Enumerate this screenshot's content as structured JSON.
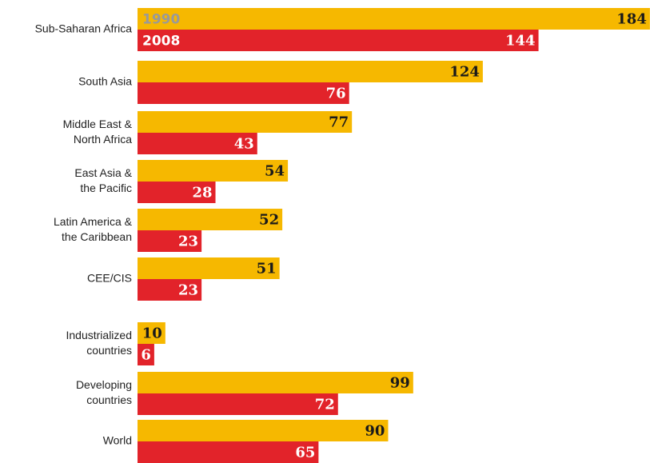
{
  "chart_data": {
    "type": "bar",
    "orientation": "horizontal",
    "categories": [
      [
        "Sub-Saharan Africa"
      ],
      [
        "South Asia"
      ],
      [
        "Middle East &",
        "North Africa"
      ],
      [
        "East Asia &",
        "the Pacific"
      ],
      [
        "Latin America &",
        "the Caribbean"
      ],
      [
        "CEE/CIS"
      ],
      [
        "Industrialized",
        "countries"
      ],
      [
        "Developing",
        "countries"
      ],
      [
        "World"
      ]
    ],
    "series": [
      {
        "name": "1990",
        "color": "#f6b800",
        "label_color": "#999999",
        "value_color": "#1a1a1a",
        "values": [
          184,
          124,
          77,
          54,
          52,
          51,
          10,
          99,
          90
        ]
      },
      {
        "name": "2008",
        "color": "#e2232a",
        "label_color": "#ffffff",
        "value_color": "#ffffff",
        "values": [
          144,
          76,
          43,
          28,
          23,
          23,
          6,
          72,
          65
        ]
      }
    ]
  }
}
